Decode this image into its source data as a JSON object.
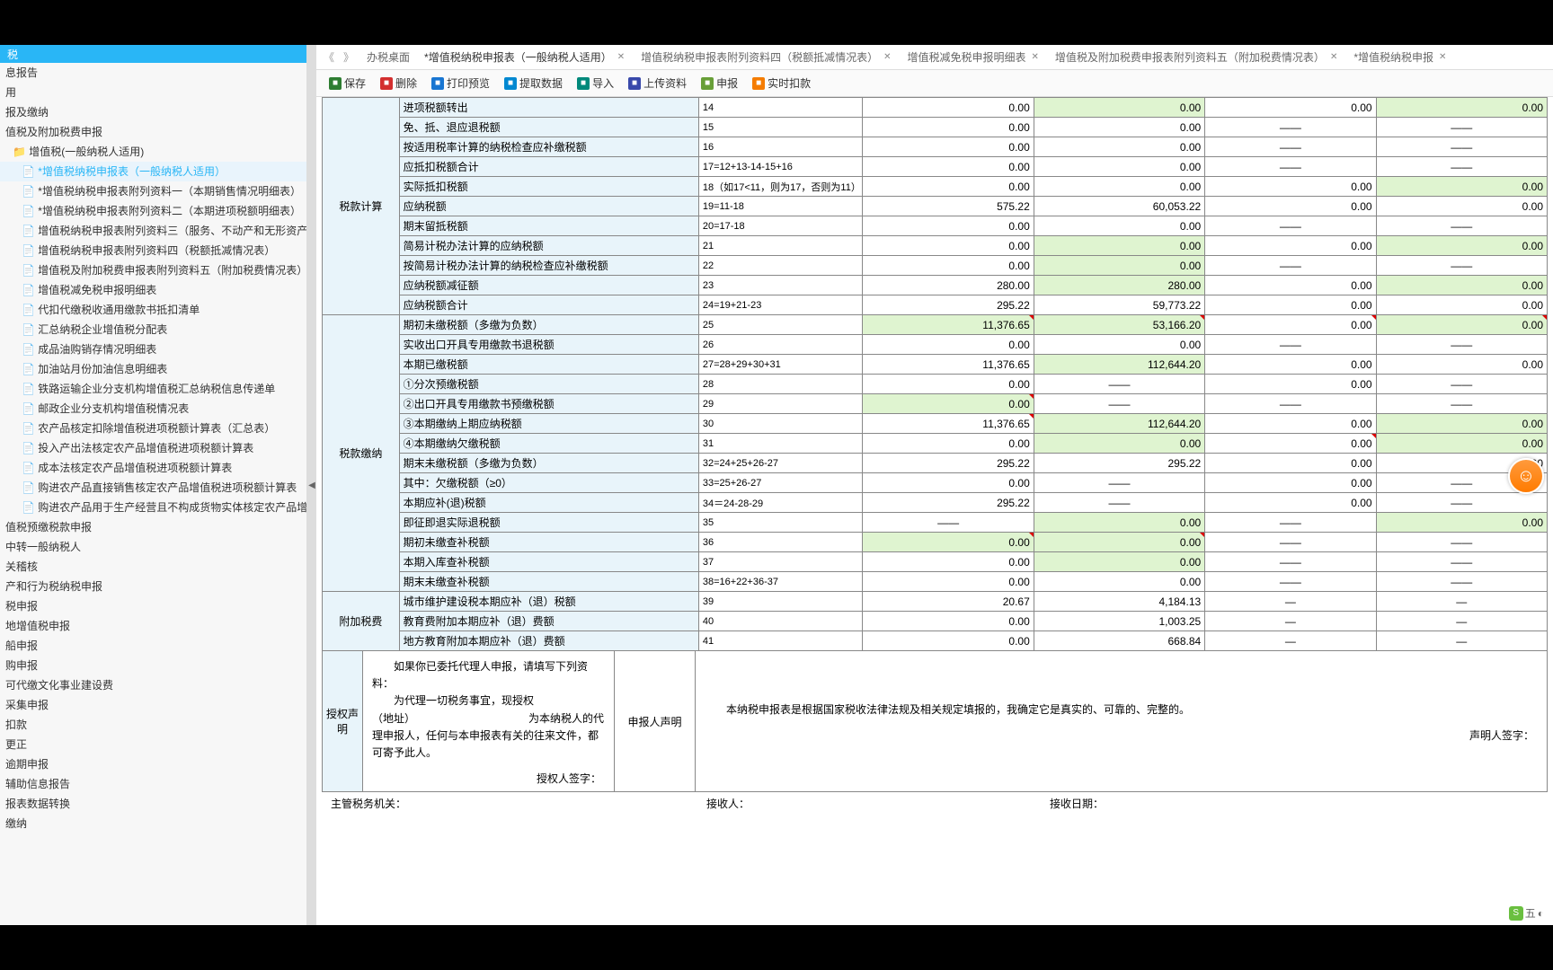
{
  "sidebar": {
    "header": "税",
    "items": [
      {
        "label": "息报告",
        "indent": 0
      },
      {
        "label": "用",
        "indent": 0
      },
      {
        "label": "报及缴纳",
        "indent": 0
      },
      {
        "label": "值税及附加税费申报",
        "indent": 0
      },
      {
        "label": "增值税(一般纳税人适用)",
        "indent": 1,
        "icon": "folder"
      },
      {
        "label": "*增值税纳税申报表（一般纳税人适用）",
        "indent": 2,
        "active": true
      },
      {
        "label": "*增值税纳税申报表附列资料一（本期销售情况明细表）",
        "indent": 2
      },
      {
        "label": "*增值税纳税申报表附列资料二（本期进项税额明细表）",
        "indent": 2
      },
      {
        "label": "增值税纳税申报表附列资料三（服务、不动产和无形资产扣除项目明细）",
        "indent": 2
      },
      {
        "label": "增值税纳税申报表附列资料四（税额抵减情况表）",
        "indent": 2
      },
      {
        "label": "增值税及附加税费申报表附列资料五（附加税费情况表）",
        "indent": 2
      },
      {
        "label": "增值税减免税申报明细表",
        "indent": 2
      },
      {
        "label": "代扣代缴税收通用缴款书抵扣清单",
        "indent": 2
      },
      {
        "label": "汇总纳税企业增值税分配表",
        "indent": 2
      },
      {
        "label": "成品油购销存情况明细表",
        "indent": 2
      },
      {
        "label": "加油站月份加油信息明细表",
        "indent": 2
      },
      {
        "label": "铁路运输企业分支机构增值税汇总纳税信息传递单",
        "indent": 2
      },
      {
        "label": "邮政企业分支机构增值税情况表",
        "indent": 2
      },
      {
        "label": "农产品核定扣除增值税进项税额计算表（汇总表）",
        "indent": 2
      },
      {
        "label": "投入产出法核定农产品增值税进项税额计算表",
        "indent": 2
      },
      {
        "label": "成本法核定农产品增值税进项税额计算表",
        "indent": 2
      },
      {
        "label": "购进农产品直接销售核定农产品增值税进项税额计算表",
        "indent": 2
      },
      {
        "label": "购进农产品用于生产经营且不构成货物实体核定农产品增值税进项税额计算",
        "indent": 2
      },
      {
        "label": "值税预缴税款申报",
        "indent": 0
      },
      {
        "label": "中转一般纳税人",
        "indent": 0
      },
      {
        "label": "关稽核",
        "indent": 0
      },
      {
        "label": "产和行为税纳税申报",
        "indent": 0
      },
      {
        "label": "税申报",
        "indent": 0
      },
      {
        "label": "地增值税申报",
        "indent": 0
      },
      {
        "label": "船申报",
        "indent": 0
      },
      {
        "label": "购申报",
        "indent": 0
      },
      {
        "label": "可代缴文化事业建设费",
        "indent": 0
      },
      {
        "label": "采集申报",
        "indent": 0
      },
      {
        "label": "扣款",
        "indent": 0
      },
      {
        "label": "更正",
        "indent": 0
      },
      {
        "label": "逾期申报",
        "indent": 0
      },
      {
        "label": "辅助信息报告",
        "indent": 0
      },
      {
        "label": "报表数据转换",
        "indent": 0
      },
      {
        "label": "缴纳",
        "indent": 0
      }
    ]
  },
  "tabs": [
    {
      "label": "办税桌面",
      "closable": false
    },
    {
      "label": "*增值税纳税申报表（一般纳税人适用）",
      "closable": true,
      "active": true
    },
    {
      "label": "增值税纳税申报表附列资料四（税额抵减情况表）",
      "closable": true
    },
    {
      "label": "增值税减免税申报明细表",
      "closable": true
    },
    {
      "label": "增值税及附加税费申报表附列资料五（附加税费情况表）",
      "closable": true
    },
    {
      "label": "*增值税纳税申报",
      "closable": true
    }
  ],
  "toolbar": [
    {
      "label": "保存",
      "icon": "save",
      "cls": "ic-save"
    },
    {
      "label": "删除",
      "icon": "del",
      "cls": "ic-del"
    },
    {
      "label": "打印预览",
      "icon": "print",
      "cls": "ic-print"
    },
    {
      "label": "提取数据",
      "icon": "get",
      "cls": "ic-get"
    },
    {
      "label": "导入",
      "icon": "imp",
      "cls": "ic-import"
    },
    {
      "label": "上传资料",
      "icon": "up",
      "cls": "ic-upload"
    },
    {
      "label": "申报",
      "icon": "rpt",
      "cls": "ic-report"
    },
    {
      "label": "实时扣款",
      "icon": "pay",
      "cls": "ic-pay"
    }
  ],
  "sections": [
    {
      "title": "税款计算",
      "rows": [
        {
          "label": "进项税额转出",
          "no": "14",
          "c1": "0.00",
          "c2": "0.00",
          "c2g": true,
          "c3": "0.00",
          "c4": "0.00",
          "c4g": true
        },
        {
          "label": "免、抵、退应退税额",
          "no": "15",
          "c1": "0.00",
          "c2": "0.00",
          "c3": "——",
          "c3d": true,
          "c4": "——",
          "c4d": true
        },
        {
          "label": "按适用税率计算的纳税检查应补缴税额",
          "no": "16",
          "c1": "0.00",
          "c2": "0.00",
          "c3": "——",
          "c3d": true,
          "c4": "——",
          "c4d": true
        },
        {
          "label": "应抵扣税额合计",
          "no": "17=12+13-14-15+16",
          "c1": "0.00",
          "c2": "0.00",
          "c3": "——",
          "c3d": true,
          "c4": "——",
          "c4d": true
        },
        {
          "label": "实际抵扣税额",
          "no": "18（如17<11，则为17，否则为11）",
          "c1": "0.00",
          "c2": "0.00",
          "c3": "0.00",
          "c4": "0.00",
          "c4g": true
        },
        {
          "label": "应纳税额",
          "no": "19=11-18",
          "c1": "575.22",
          "c2": "60,053.22",
          "c3": "0.00",
          "c4": "0.00"
        },
        {
          "label": "期末留抵税额",
          "no": "20=17-18",
          "c1": "0.00",
          "c2": "0.00",
          "c3": "——",
          "c3d": true,
          "c4": "——",
          "c4d": true
        },
        {
          "label": "简易计税办法计算的应纳税额",
          "no": "21",
          "c1": "0.00",
          "c2": "0.00",
          "c2g": true,
          "c3": "0.00",
          "c4": "0.00",
          "c4g": true
        },
        {
          "label": "按简易计税办法计算的纳税检查应补缴税额",
          "no": "22",
          "c1": "0.00",
          "c2": "0.00",
          "c2g": true,
          "c3": "——",
          "c3d": true,
          "c4": "——",
          "c4d": true
        },
        {
          "label": "应纳税额减征额",
          "no": "23",
          "c1": "280.00",
          "c2": "280.00",
          "c2g": true,
          "c3": "0.00",
          "c4": "0.00",
          "c4g": true
        },
        {
          "label": "应纳税额合计",
          "no": "24=19+21-23",
          "c1": "295.22",
          "c2": "59,773.22",
          "c3": "0.00",
          "c4": "0.00"
        }
      ]
    },
    {
      "title": "税款缴纳",
      "rows": [
        {
          "label": "期初未缴税额（多缴为负数）",
          "no": "25",
          "c1": "11,376.65",
          "c1g": true,
          "c1r": true,
          "c2": "53,166.20",
          "c2g": true,
          "c2r": true,
          "c3": "0.00",
          "c3r": true,
          "c4": "0.00",
          "c4g": true,
          "c4r": true
        },
        {
          "label": "实收出口开具专用缴款书退税额",
          "no": "26",
          "c1": "0.00",
          "c2": "0.00",
          "c3": "——",
          "c3d": true,
          "c4": "——",
          "c4d": true
        },
        {
          "label": "本期已缴税额",
          "no": "27=28+29+30+31",
          "c1": "11,376.65",
          "c2": "112,644.20",
          "c2g": true,
          "c3": "0.00",
          "c4": "0.00"
        },
        {
          "label": "①分次预缴税额",
          "no": "28",
          "c1": "0.00",
          "c2": "——",
          "c2d": true,
          "c3": "0.00",
          "c4": "——",
          "c4d": true
        },
        {
          "label": "②出口开具专用缴款书预缴税额",
          "no": "29",
          "c1": "0.00",
          "c1g": true,
          "c1r": true,
          "c2": "——",
          "c2d": true,
          "c3": "——",
          "c3d": true,
          "c4": "——",
          "c4d": true
        },
        {
          "label": "③本期缴纳上期应纳税额",
          "no": "30",
          "c1": "11,376.65",
          "c1r": true,
          "c2": "112,644.20",
          "c2g": true,
          "c3": "0.00",
          "c4": "0.00",
          "c4g": true
        },
        {
          "label": "④本期缴纳欠缴税额",
          "no": "31",
          "c1": "0.00",
          "c2": "0.00",
          "c2g": true,
          "c3": "0.00",
          "c3r": true,
          "c4": "0.00",
          "c4g": true
        },
        {
          "label": "期末未缴税额（多缴为负数）",
          "no": "32=24+25+26-27",
          "c1": "295.22",
          "c2": "295.22",
          "c3": "0.00",
          "c4": "0.00"
        },
        {
          "label": "其中：欠缴税额（≥0）",
          "no": "33=25+26-27",
          "c1": "0.00",
          "c2": "——",
          "c2d": true,
          "c3": "0.00",
          "c4": "——",
          "c4d": true
        },
        {
          "label": "本期应补(退)税额",
          "no": "34＝24-28-29",
          "c1": "295.22",
          "c2": "——",
          "c2d": true,
          "c3": "0.00",
          "c4": "——",
          "c4d": true
        },
        {
          "label": "即征即退实际退税额",
          "no": "35",
          "c1": "——",
          "c1d": true,
          "c2": "0.00",
          "c2g": true,
          "c3": "——",
          "c3d": true,
          "c4": "0.00",
          "c4g": true
        },
        {
          "label": "期初未缴查补税额",
          "no": "36",
          "c1": "0.00",
          "c1g": true,
          "c1r": true,
          "c2": "0.00",
          "c2g": true,
          "c2r": true,
          "c3": "——",
          "c3d": true,
          "c4": "——",
          "c4d": true
        },
        {
          "label": "本期入库查补税额",
          "no": "37",
          "c1": "0.00",
          "c2": "0.00",
          "c2g": true,
          "c3": "——",
          "c3d": true,
          "c4": "——",
          "c4d": true
        },
        {
          "label": "期末未缴查补税额",
          "no": "38=16+22+36-37",
          "c1": "0.00",
          "c2": "0.00",
          "c3": "——",
          "c3d": true,
          "c4": "——",
          "c4d": true
        }
      ]
    },
    {
      "title": "附加税费",
      "rows": [
        {
          "label": "城市维护建设税本期应补（退）税额",
          "no": "39",
          "c1": "20.67",
          "c2": "4,184.13",
          "c3": "—",
          "c3d": true,
          "c4": "—",
          "c4d": true
        },
        {
          "label": "教育费附加本期应补（退）费额",
          "no": "40",
          "c1": "0.00",
          "c2": "1,003.25",
          "c3": "—",
          "c3d": true,
          "c4": "—",
          "c4d": true
        },
        {
          "label": "地方教育附加本期应补（退）费额",
          "no": "41",
          "c1": "0.00",
          "c2": "668.84",
          "c3": "—",
          "c3d": true,
          "c4": "—",
          "c4d": true
        }
      ]
    }
  ],
  "declaration": {
    "left_title": "授权声明",
    "left_body": "　　如果你已委托代理人申报，请填写下列资料：\n　　为代理一切税务事宜，现授权\n（地址）　　　　　　　　　　　为本纳税人的代理申报人，任何与本申报表有关的往来文件，都可寄予此人。",
    "left_sign": "授权人签字：",
    "mid_title": "申报人声明",
    "right_body": "　　本纳税申报表是根据国家税收法律法规及相关规定填报的，我确定它是真实的、可靠的、完整的。",
    "right_sign": "声明人签字："
  },
  "footer": {
    "authority": "主管税务机关：",
    "receiver": "接收人：",
    "recv_date": "接收日期："
  },
  "ime": {
    "icon": "S",
    "text": "五"
  },
  "colors": {
    "header_bg": "#29b6f6",
    "label_bg": "#e8f4fa",
    "green_cell": "#dff4d0",
    "border": "#888888"
  }
}
